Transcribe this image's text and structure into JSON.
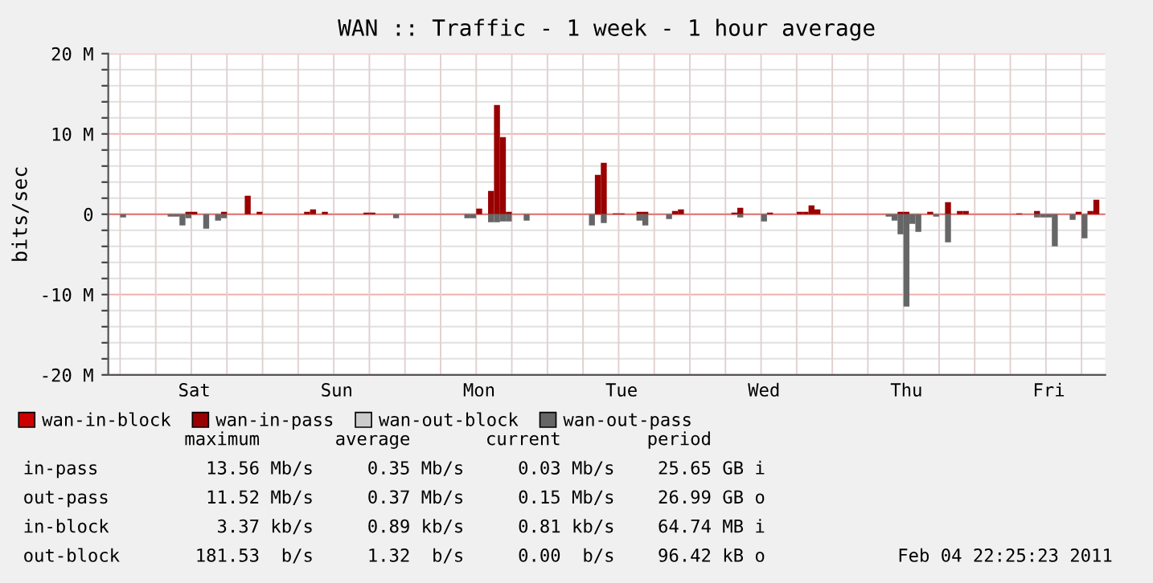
{
  "chart_data": {
    "type": "bar",
    "title": "WAN :: Traffic - 1 week - 1 hour average",
    "ylabel": "bits/sec",
    "categories": [
      null,
      null,
      null,
      null,
      null,
      null,
      null,
      null,
      null,
      null,
      null,
      null,
      null,
      null,
      "Sat",
      null,
      null,
      null,
      null,
      null,
      null,
      null,
      null,
      null,
      null,
      null,
      null,
      null,
      null,
      null,
      null,
      null,
      null,
      null,
      null,
      null,
      null,
      null,
      "Sun",
      null,
      null,
      null,
      null,
      null,
      null,
      null,
      null,
      null,
      null,
      null,
      null,
      null,
      null,
      null,
      null,
      null,
      null,
      null,
      null,
      null,
      null,
      null,
      "Mon",
      null,
      null,
      null,
      null,
      null,
      null,
      null,
      null,
      null,
      null,
      null,
      null,
      null,
      null,
      null,
      null,
      null,
      null,
      null,
      null,
      null,
      null,
      null,
      "Tue",
      null,
      null,
      null,
      null,
      null,
      null,
      null,
      null,
      null,
      null,
      null,
      null,
      null,
      null,
      null,
      null,
      null,
      null,
      null,
      null,
      null,
      null,
      null,
      "Wed",
      null,
      null,
      null,
      null,
      null,
      null,
      null,
      null,
      null,
      null,
      null,
      null,
      null,
      null,
      null,
      null,
      null,
      null,
      null,
      null,
      null,
      null,
      null,
      "Thu",
      null,
      null,
      null,
      null,
      null,
      null,
      null,
      null,
      null,
      null,
      null,
      null,
      null,
      null,
      null,
      null,
      null,
      null,
      null,
      null,
      null,
      null,
      null,
      "Fri",
      null,
      null,
      null,
      null,
      null,
      null,
      null,
      null,
      null
    ],
    "ylim": [
      -20,
      20
    ],
    "yticks": [
      {
        "value": -20,
        "label": "-20 M"
      },
      {
        "value": -18,
        "label": null
      },
      {
        "value": -16,
        "label": null
      },
      {
        "value": -14,
        "label": null
      },
      {
        "value": -12,
        "label": null
      },
      {
        "value": -10,
        "label": "-10 M"
      },
      {
        "value": -8,
        "label": null
      },
      {
        "value": -6,
        "label": null
      },
      {
        "value": -4,
        "label": null
      },
      {
        "value": -2,
        "label": null
      },
      0,
      {
        "value": 2,
        "label": null
      },
      {
        "value": 4,
        "label": null
      },
      {
        "value": 6,
        "label": null
      },
      {
        "value": 8,
        "label": null
      },
      {
        "value": 10,
        "label": "10 M"
      },
      {
        "value": 12,
        "label": null
      },
      {
        "value": 14,
        "label": null
      },
      {
        "value": 16,
        "label": null
      },
      {
        "value": 18,
        "label": null
      },
      {
        "value": 20,
        "label": "20 M"
      }
    ],
    "grid": true,
    "stacked": true,
    "legend": "bottom",
    "ref_lines": [
      {
        "axis": "y",
        "value": 0,
        "label": null,
        "color": "#e08080"
      }
    ],
    "series": [
      {
        "name": "wan-in-block",
        "color": "#cc0000",
        "values": [
          null,
          null,
          null,
          null,
          null,
          null,
          null,
          null,
          null,
          null,
          null,
          null,
          null,
          null,
          null,
          null,
          null,
          null,
          null,
          null,
          null,
          null,
          null,
          null,
          null,
          null,
          null,
          null,
          null,
          null,
          null,
          null,
          null,
          null,
          null,
          null,
          null,
          null,
          null,
          null,
          null,
          null,
          null,
          null,
          null,
          null,
          null,
          null,
          null,
          null,
          null,
          null,
          null,
          null,
          null,
          null,
          null,
          null,
          null,
          null,
          null,
          null,
          null,
          null,
          null,
          null,
          null,
          null,
          null,
          null,
          null,
          null,
          null,
          null,
          null,
          null,
          null,
          null,
          null,
          null,
          null,
          null,
          null,
          null,
          null,
          null,
          null,
          null,
          null,
          null,
          null,
          null,
          null,
          null,
          null,
          null,
          null,
          null,
          null,
          null,
          null,
          null,
          null,
          null,
          null,
          null,
          null,
          null,
          null,
          null,
          null,
          null,
          null,
          null,
          null,
          null,
          null,
          null,
          null,
          null,
          null,
          null,
          null,
          null,
          null,
          null,
          null,
          null,
          null,
          null,
          null,
          null,
          null,
          null,
          null,
          null,
          null,
          null,
          null,
          null,
          null,
          null,
          null,
          null,
          null,
          null,
          null,
          null,
          null,
          null,
          null,
          null,
          null,
          null,
          null,
          null,
          null,
          null,
          null,
          null,
          null,
          null,
          null,
          null,
          null,
          null,
          null,
          null
        ]
      },
      {
        "name": "wan-in-pass",
        "color": "#990000",
        "values": [
          null,
          null,
          null,
          null,
          null,
          null,
          null,
          null,
          null,
          null,
          null,
          null,
          null,
          0.3,
          0.3,
          null,
          null,
          null,
          null,
          0.3,
          null,
          null,
          null,
          2.3,
          null,
          0.3,
          null,
          null,
          null,
          null,
          null,
          null,
          null,
          0.3,
          0.6,
          null,
          0.3,
          null,
          null,
          null,
          null,
          null,
          null,
          0.2,
          0.2,
          null,
          null,
          null,
          null,
          null,
          null,
          null,
          null,
          null,
          null,
          null,
          null,
          null,
          null,
          null,
          null,
          null,
          0.7,
          null,
          2.9,
          13.6,
          9.6,
          0.3,
          null,
          null,
          null,
          null,
          null,
          null,
          null,
          null,
          null,
          null,
          null,
          null,
          null,
          null,
          4.9,
          6.4,
          null,
          0.1,
          0.1,
          null,
          null,
          0.3,
          0.3,
          null,
          null,
          null,
          null,
          0.4,
          0.6,
          null,
          null,
          null,
          null,
          null,
          null,
          null,
          null,
          0.2,
          0.8,
          null,
          null,
          null,
          null,
          0.2,
          null,
          null,
          null,
          null,
          0.3,
          0.3,
          1.1,
          0.6,
          null,
          null,
          null,
          null,
          null,
          null,
          null,
          null,
          null,
          null,
          null,
          null,
          null,
          0.3,
          0.3,
          null,
          null,
          null,
          0.3,
          null,
          null,
          1.5,
          null,
          0.4,
          0.4,
          null,
          null,
          null,
          null,
          null,
          null,
          null,
          null,
          0.1,
          null,
          null,
          0.4,
          null,
          null,
          null,
          null,
          null,
          null,
          0.3,
          null,
          0.4,
          1.8,
          null
        ]
      },
      {
        "name": "wan-out-block",
        "color": "#cccccc",
        "values": [
          null,
          null,
          null,
          null,
          null,
          null,
          null,
          null,
          null,
          null,
          null,
          null,
          null,
          null,
          null,
          null,
          null,
          null,
          null,
          null,
          null,
          null,
          null,
          null,
          null,
          null,
          null,
          null,
          null,
          null,
          null,
          null,
          null,
          null,
          null,
          null,
          null,
          null,
          null,
          null,
          null,
          null,
          null,
          null,
          null,
          null,
          null,
          null,
          null,
          null,
          null,
          null,
          null,
          null,
          null,
          null,
          null,
          null,
          null,
          null,
          null,
          null,
          null,
          null,
          null,
          null,
          null,
          null,
          null,
          null,
          null,
          null,
          null,
          null,
          null,
          null,
          null,
          null,
          null,
          null,
          null,
          null,
          null,
          null,
          null,
          null,
          null,
          null,
          null,
          null,
          null,
          null,
          null,
          null,
          null,
          null,
          null,
          null,
          null,
          null,
          null,
          null,
          null,
          null,
          null,
          null,
          null,
          null,
          null,
          null,
          null,
          null,
          null,
          null,
          null,
          null,
          null,
          null,
          null,
          null,
          null,
          null,
          null,
          null,
          null,
          null,
          null,
          null,
          null,
          null,
          null,
          null,
          null,
          null,
          null,
          null,
          null,
          null,
          null,
          null,
          null,
          null,
          null,
          null,
          null,
          null,
          null,
          null,
          null,
          null,
          null,
          null,
          null,
          null,
          null,
          null,
          null,
          null,
          null,
          null,
          null,
          null,
          null,
          null,
          null,
          null,
          null,
          null
        ]
      },
      {
        "name": "wan-out-pass",
        "color": "#666666",
        "values": [
          null,
          null,
          -0.4,
          null,
          null,
          null,
          null,
          null,
          null,
          null,
          -0.3,
          -0.3,
          -1.4,
          -0.5,
          null,
          null,
          -1.8,
          null,
          -0.8,
          -0.5,
          null,
          null,
          null,
          null,
          null,
          null,
          null,
          null,
          null,
          null,
          null,
          null,
          null,
          null,
          null,
          null,
          null,
          null,
          null,
          null,
          null,
          null,
          null,
          null,
          null,
          null,
          null,
          null,
          -0.5,
          null,
          null,
          null,
          null,
          null,
          null,
          null,
          null,
          null,
          null,
          null,
          -0.5,
          -0.5,
          null,
          null,
          -1.0,
          -1.0,
          -0.9,
          -0.9,
          null,
          null,
          -0.8,
          null,
          null,
          null,
          null,
          null,
          null,
          null,
          null,
          null,
          null,
          -1.4,
          null,
          -1.1,
          null,
          null,
          null,
          null,
          null,
          -0.8,
          -1.4,
          null,
          null,
          null,
          -0.6,
          null,
          null,
          null,
          null,
          null,
          null,
          null,
          null,
          null,
          null,
          null,
          -0.4,
          null,
          null,
          null,
          -0.9,
          null,
          null,
          null,
          null,
          null,
          null,
          null,
          null,
          null,
          null,
          null,
          null,
          null,
          null,
          null,
          null,
          null,
          null,
          null,
          null,
          -0.3,
          -0.8,
          -2.5,
          -11.5,
          -1.2,
          -2.2,
          null,
          null,
          -0.3,
          null,
          -3.5,
          null,
          null,
          null,
          null,
          null,
          null,
          null,
          null,
          null,
          null,
          null,
          null,
          null,
          null,
          -0.4,
          -0.4,
          -0.4,
          -4.0,
          null,
          null,
          -0.7,
          null,
          -3.0,
          null,
          null,
          null
        ]
      }
    ],
    "annotations": [
      "               maximum       average       current        period",
      "in-pass          13.56 Mb/s     0.35 Mb/s     0.03 Mb/s    25.65 GB i",
      "out-pass         11.52 Mb/s     0.37 Mb/s     0.15 Mb/s    26.99 GB o",
      "in-block          3.37 kb/s     0.89 kb/s     0.81 kb/s    64.74 MB i",
      "out-block       181.53  b/s     1.32  b/s     0.00  b/s    96.42 kB o",
      "Feb 04 22:25:23 2011"
    ]
  }
}
